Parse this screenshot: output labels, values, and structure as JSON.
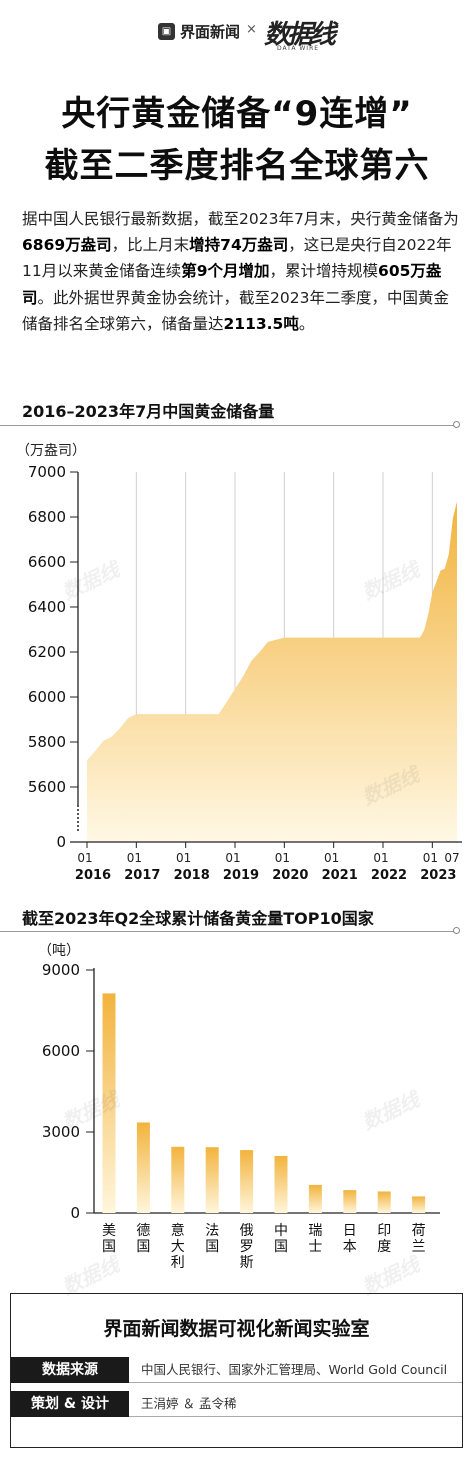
{
  "brand": {
    "name": "界面新闻",
    "separator": "×",
    "partner": "数据线",
    "partner_sub": "DATA WIRE"
  },
  "headline": {
    "line1": "央行黄金储备“9连增”",
    "line2": "截至二季度排名全球第六"
  },
  "intro": {
    "p1": "据中国人民银行最新数据，截至2023年7月末，央行黄金储备为",
    "b1": "6869万盎司",
    "p2": "，比上月末",
    "b2": "增持74万盎司",
    "p3": "，这已是央行自2022年11月以来黄金储备连续",
    "b3": "第9个月增加",
    "p4": "，累计增持规模",
    "b4": "605万盎司",
    "p5": "。此外据世界黄金协会统计，截至2023年二季度，中国黄金储备排名全球第六，储备量达",
    "b5": "2113.5吨",
    "p6": "。"
  },
  "chart_data": [
    {
      "type": "area",
      "title": "2016–2023年7月中国黄金储备量",
      "ylabel": "（万盎司）",
      "ylim": [
        5600,
        7000
      ],
      "y_axis_break": true,
      "yticks": [
        "7000",
        "6800",
        "6600",
        "6400",
        "6200",
        "6000",
        "5800",
        "5600",
        "0"
      ],
      "year_labels": [
        "2016",
        "2017",
        "2018",
        "2019",
        "2020",
        "2021",
        "2022",
        "2023"
      ],
      "month_labels": [
        "01",
        "01",
        "01",
        "01",
        "01",
        "01",
        "01",
        "01",
        "07"
      ],
      "color": "#f2b33d",
      "grid": "vertical",
      "series": [
        {
          "x": [
            "2016-01",
            "2016-03",
            "2016-05",
            "2016-07",
            "2016-09",
            "2016-11",
            "2017-01",
            "2018-01",
            "2018-09",
            "2018-11",
            "2019-01",
            "2019-03",
            "2019-05",
            "2019-07",
            "2019-09",
            "2020-01",
            "2021-01",
            "2022-01",
            "2022-10",
            "2022-11",
            "2022-12",
            "2023-01",
            "2023-02",
            "2023-03",
            "2023-04",
            "2023-05",
            "2023-06",
            "2023-07"
          ],
          "y": [
            5719,
            5760,
            5805,
            5823,
            5861,
            5906,
            5924,
            5924,
            5924,
            5978,
            6036,
            6092,
            6161,
            6200,
            6245,
            6264,
            6264,
            6264,
            6264,
            6296,
            6367,
            6463,
            6512,
            6562,
            6570,
            6635,
            6795,
            6869
          ]
        }
      ]
    },
    {
      "type": "bar",
      "title": "截至2023年Q2全球累计储备黄金量TOP10国家",
      "ylabel": "（吨）",
      "ylim": [
        0,
        9000
      ],
      "yticks": [
        "9000",
        "6000",
        "3000",
        "0"
      ],
      "color": "#f2b33d",
      "categories": [
        "美国",
        "德国",
        "意大利",
        "法国",
        "俄罗斯",
        "中国",
        "瑞士",
        "日本",
        "印度",
        "荷兰"
      ],
      "values": [
        8133.5,
        3352.6,
        2451.8,
        2436.6,
        2329.6,
        2113.5,
        1040.0,
        846.0,
        797.4,
        612.5
      ]
    }
  ],
  "footer": {
    "title": "界面新闻数据可视化新闻实验室",
    "source_label": "数据来源",
    "source_value": "中国人民银行、国家外汇管理局、World Gold Council",
    "design_label": "策划 & 设计",
    "design_value": "王涓婷 ＆ 孟令稀"
  }
}
